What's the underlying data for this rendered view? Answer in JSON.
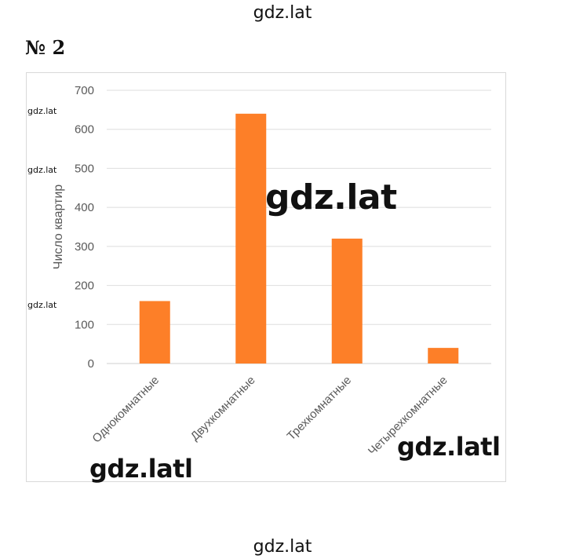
{
  "watermarks": {
    "top": "gdz.lat",
    "bottom": "gdz.lat",
    "center": "gdz.lat",
    "bottom_left": "gdz.latl",
    "bottom_right": "gdz.latl",
    "side_1": "gdz.lat",
    "side_2": "gdz.lat",
    "side_3": "gdz.lat"
  },
  "task_number": "№ 2",
  "chart_data": {
    "type": "bar",
    "categories": [
      "Однокомнатные",
      "Двухкомнатные",
      "Трехкомнатные",
      "Четырехкомнатные"
    ],
    "values": [
      160,
      640,
      320,
      40
    ],
    "title": "",
    "xlabel": "",
    "ylabel": "Число квартир",
    "ylim": [
      0,
      700
    ],
    "yticks": [
      0,
      100,
      200,
      300,
      400,
      500,
      600,
      700
    ],
    "grid": true,
    "legend": false,
    "bar_color": "#fd7f28"
  }
}
